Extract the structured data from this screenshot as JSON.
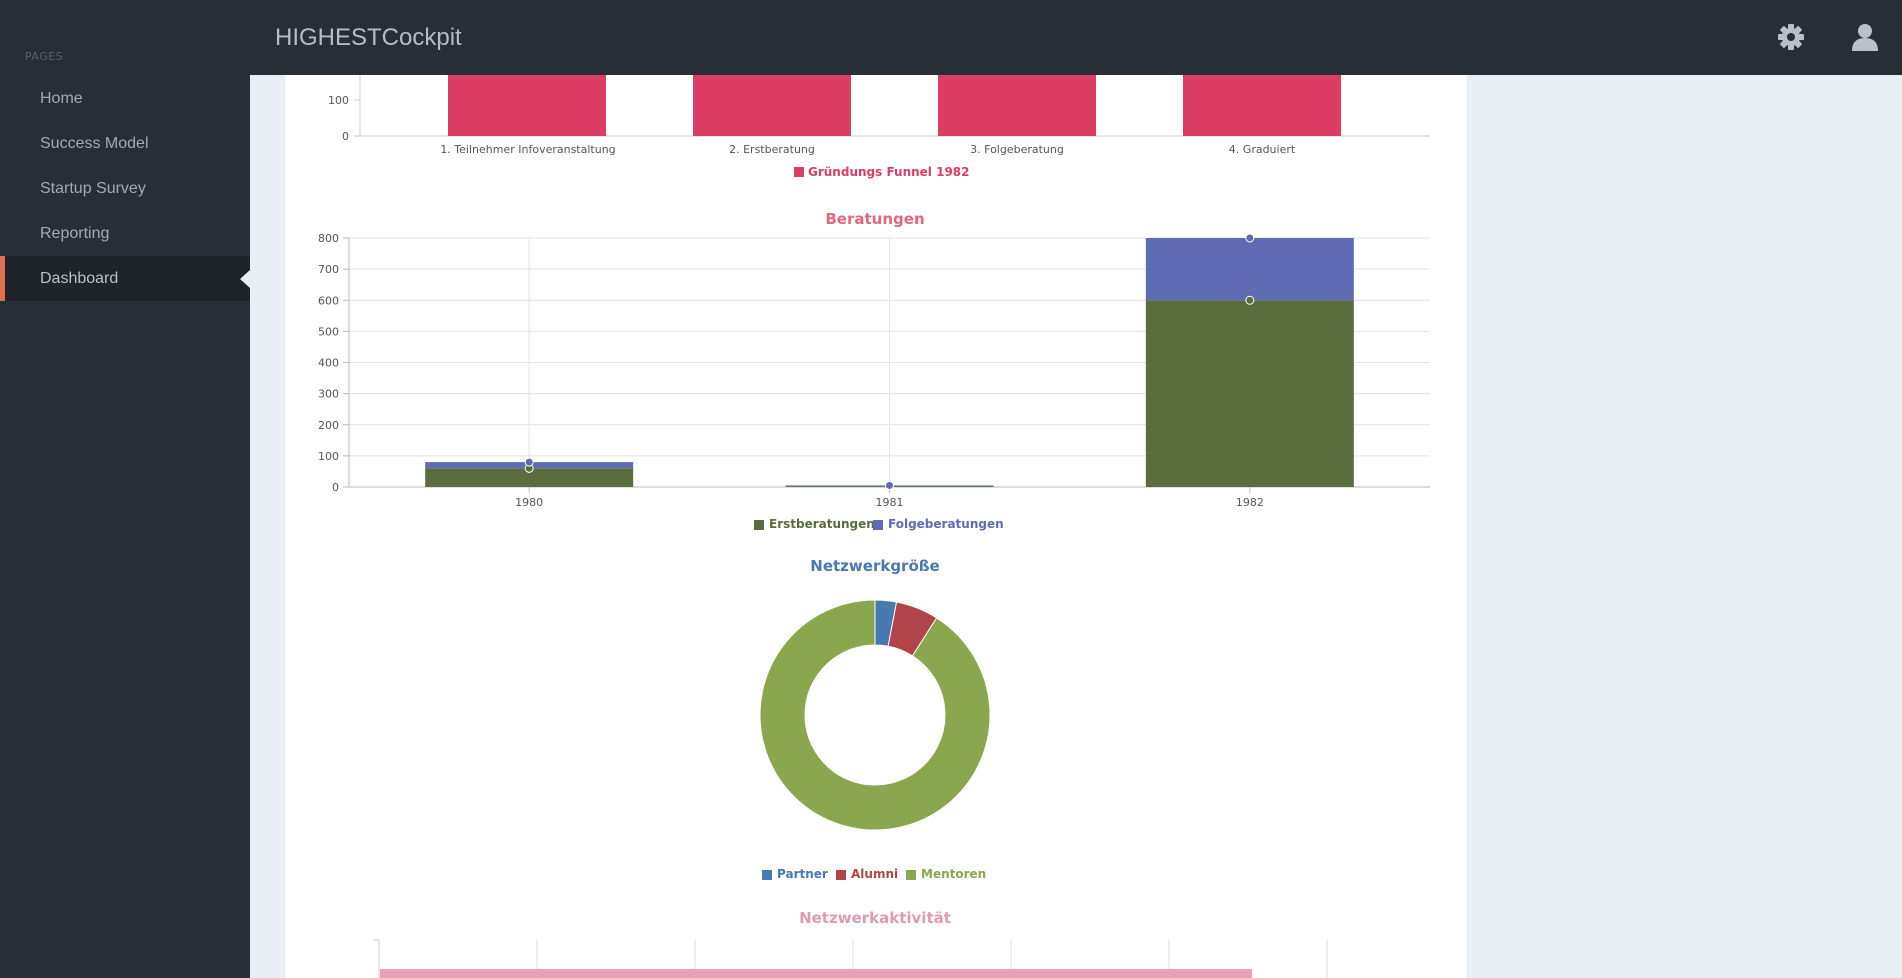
{
  "app": {
    "title": "HIGHESTCockpit"
  },
  "topbar": {
    "icons": [
      "gear-icon",
      "user-icon"
    ]
  },
  "sidebar": {
    "heading": "PAGES",
    "items": [
      {
        "label": "Home",
        "active": false
      },
      {
        "label": "Success Model",
        "active": false
      },
      {
        "label": "Startup Survey",
        "active": false
      },
      {
        "label": "Reporting",
        "active": false
      },
      {
        "label": "Dashboard",
        "active": true
      }
    ]
  },
  "colors": {
    "funnel": "#dc3d64",
    "erstberatungen": "#5b6d3e",
    "folgeberatungen": "#5f6bb5",
    "partner": "#4a78b0",
    "alumni": "#b04448",
    "mentoren": "#8aa64e",
    "netzwerkaktivitaet": "#e7a1b8"
  },
  "chart_data": [
    {
      "type": "bar",
      "title": "",
      "categories": [
        "1. Teilnehmer Infoveranstaltung",
        "2. Erstberatung",
        "3. Folgeberatung",
        "4. Graduiert"
      ],
      "y_ticks": [
        "100",
        "0"
      ],
      "series": [
        {
          "name": "Gründungs Funnel 1982"
        }
      ],
      "legend": "bottom"
    },
    {
      "type": "bar",
      "stacked": true,
      "title": "Beratungen",
      "categories": [
        "1980",
        "1981",
        "1982"
      ],
      "ylim": [
        0,
        800
      ],
      "y_ticks": [
        0,
        100,
        200,
        300,
        400,
        500,
        600,
        700,
        800
      ],
      "series": [
        {
          "name": "Erstberatungen",
          "values": [
            60,
            3,
            600
          ]
        },
        {
          "name": "Folgeberatungen",
          "values": [
            20,
            2,
            200
          ]
        }
      ],
      "legend": "bottom"
    },
    {
      "type": "pie",
      "donut": true,
      "title": "Netzwerkgröße",
      "slices": [
        {
          "name": "Partner",
          "value": 3
        },
        {
          "name": "Alumni",
          "value": 6
        },
        {
          "name": "Mentoren",
          "value": 91
        }
      ],
      "legend": "bottom"
    },
    {
      "type": "bar",
      "title": "Netzwerkaktivität"
    }
  ]
}
